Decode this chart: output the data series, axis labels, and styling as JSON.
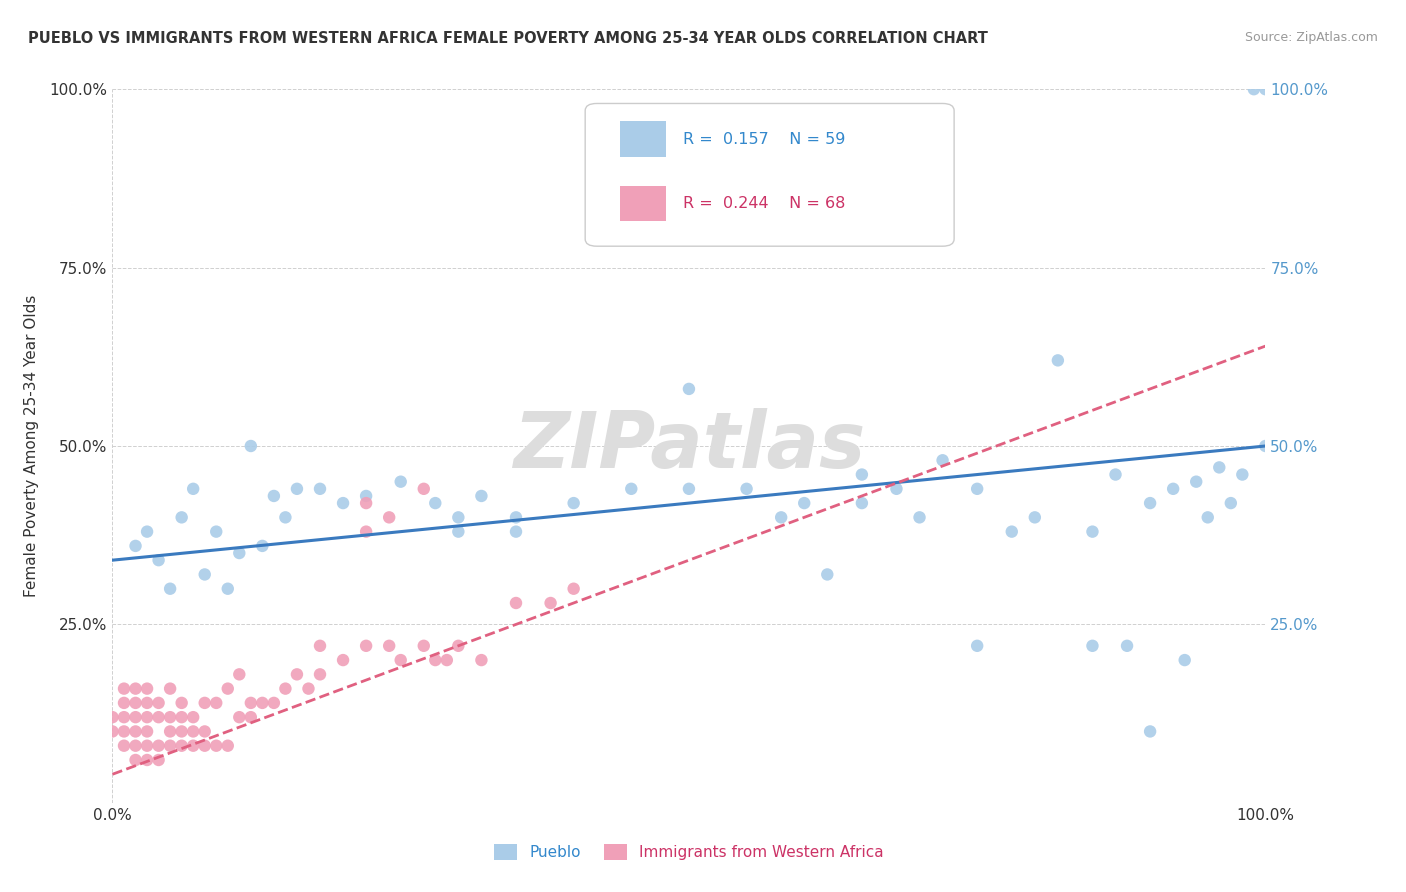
{
  "title": "PUEBLO VS IMMIGRANTS FROM WESTERN AFRICA FEMALE POVERTY AMONG 25-34 YEAR OLDS CORRELATION CHART",
  "source": "Source: ZipAtlas.com",
  "ylabel": "Female Poverty Among 25-34 Year Olds",
  "xlim": [
    0,
    1.0
  ],
  "ylim": [
    0,
    1.0
  ],
  "pueblo_color": "#aacce8",
  "immigrants_color": "#f0a0b8",
  "pueblo_line_color": "#3a7abf",
  "immigrants_line_color": "#e06080",
  "watermark": "ZIPatlas",
  "pueblo_scatter_x": [
    0.02,
    0.03,
    0.04,
    0.05,
    0.06,
    0.07,
    0.08,
    0.09,
    0.1,
    0.11,
    0.12,
    0.13,
    0.14,
    0.15,
    0.16,
    0.18,
    0.2,
    0.22,
    0.25,
    0.28,
    0.3,
    0.32,
    0.35,
    0.4,
    0.5,
    0.55,
    0.58,
    0.6,
    0.62,
    0.65,
    0.68,
    0.7,
    0.72,
    0.75,
    0.78,
    0.8,
    0.82,
    0.85,
    0.87,
    0.88,
    0.9,
    0.92,
    0.93,
    0.94,
    0.95,
    0.96,
    0.97,
    0.98,
    1.0,
    1.0,
    0.3,
    0.35,
    0.45,
    0.5,
    0.65,
    0.75,
    0.85,
    0.9,
    0.99
  ],
  "pueblo_scatter_y": [
    0.36,
    0.38,
    0.34,
    0.3,
    0.4,
    0.44,
    0.32,
    0.38,
    0.3,
    0.35,
    0.5,
    0.36,
    0.43,
    0.4,
    0.44,
    0.44,
    0.42,
    0.43,
    0.45,
    0.42,
    0.4,
    0.43,
    0.4,
    0.42,
    0.44,
    0.44,
    0.4,
    0.42,
    0.32,
    0.46,
    0.44,
    0.4,
    0.48,
    0.44,
    0.38,
    0.4,
    0.62,
    0.38,
    0.46,
    0.22,
    0.42,
    0.44,
    0.2,
    0.45,
    0.4,
    0.47,
    0.42,
    0.46,
    0.5,
    1.0,
    0.38,
    0.38,
    0.44,
    0.58,
    0.42,
    0.22,
    0.22,
    0.1,
    1.0
  ],
  "immigrants_scatter_x": [
    0.0,
    0.0,
    0.01,
    0.01,
    0.01,
    0.01,
    0.01,
    0.02,
    0.02,
    0.02,
    0.02,
    0.02,
    0.02,
    0.03,
    0.03,
    0.03,
    0.03,
    0.03,
    0.03,
    0.04,
    0.04,
    0.04,
    0.04,
    0.05,
    0.05,
    0.05,
    0.05,
    0.06,
    0.06,
    0.06,
    0.06,
    0.07,
    0.07,
    0.07,
    0.08,
    0.08,
    0.08,
    0.09,
    0.09,
    0.1,
    0.1,
    0.11,
    0.11,
    0.12,
    0.12,
    0.13,
    0.14,
    0.15,
    0.16,
    0.17,
    0.18,
    0.18,
    0.2,
    0.22,
    0.22,
    0.24,
    0.25,
    0.27,
    0.28,
    0.29,
    0.3,
    0.32,
    0.35,
    0.38,
    0.4,
    0.22,
    0.24,
    0.27
  ],
  "immigrants_scatter_y": [
    0.1,
    0.12,
    0.08,
    0.1,
    0.12,
    0.14,
    0.16,
    0.06,
    0.08,
    0.1,
    0.12,
    0.14,
    0.16,
    0.06,
    0.08,
    0.1,
    0.12,
    0.14,
    0.16,
    0.06,
    0.08,
    0.12,
    0.14,
    0.08,
    0.1,
    0.12,
    0.16,
    0.08,
    0.1,
    0.12,
    0.14,
    0.08,
    0.1,
    0.12,
    0.08,
    0.1,
    0.14,
    0.08,
    0.14,
    0.08,
    0.16,
    0.12,
    0.18,
    0.12,
    0.14,
    0.14,
    0.14,
    0.16,
    0.18,
    0.16,
    0.18,
    0.22,
    0.2,
    0.22,
    0.38,
    0.22,
    0.2,
    0.22,
    0.2,
    0.2,
    0.22,
    0.2,
    0.28,
    0.28,
    0.3,
    0.42,
    0.4,
    0.44
  ],
  "pueblo_trend_start": 0.34,
  "pueblo_trend_end": 0.5,
  "immigrants_trend_x0": 0.0,
  "immigrants_trend_y0": 0.04,
  "immigrants_trend_x1": 0.4,
  "immigrants_trend_y1": 0.28
}
